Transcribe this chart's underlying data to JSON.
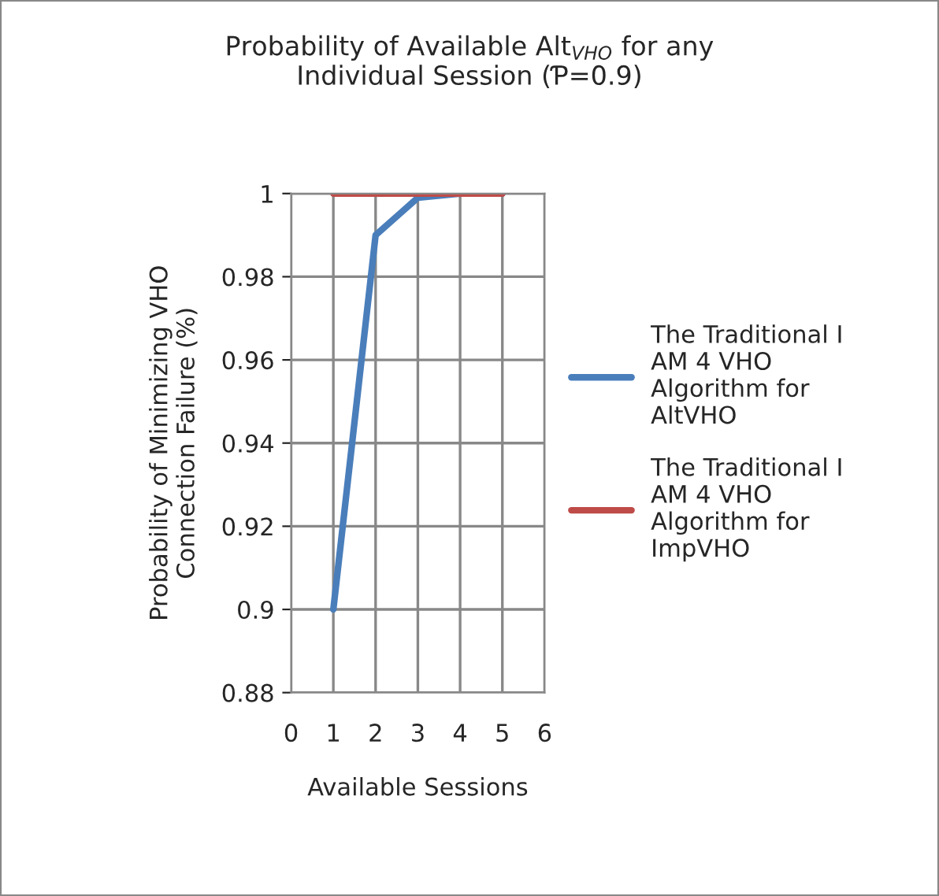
{
  "chart_data": {
    "type": "line",
    "title": "Probability of Available Alt$_{VHO}$ for any Individual Session (Ƥ=0.9)",
    "xlabel": "Available Sessions",
    "ylabel": "Probability of Minimizing VHO Connection Failure (%)",
    "x": [
      1,
      2,
      3,
      4,
      5
    ],
    "series": [
      {
        "name": "The Traditional I AM 4 VHO Algorithm for AltVHO",
        "color": "#4a7ebb",
        "values": [
          0.9,
          0.99,
          0.999,
          1,
          1
        ]
      },
      {
        "name": "The Traditional I AM 4 VHO Algorithm for ImpVHO",
        "color": "#be4b48",
        "values": [
          1,
          1,
          1,
          1,
          1
        ]
      }
    ],
    "xlim": [
      0,
      6
    ],
    "xticks": [
      0,
      1,
      2,
      3,
      4,
      5,
      6
    ],
    "ylim": [
      0.88,
      1
    ],
    "yticks": [
      0.88,
      0.9,
      0.92,
      0.94,
      0.96,
      0.98,
      1
    ],
    "grid": true,
    "legend": "right",
    "marker": "none",
    "line_style": "solid"
  }
}
